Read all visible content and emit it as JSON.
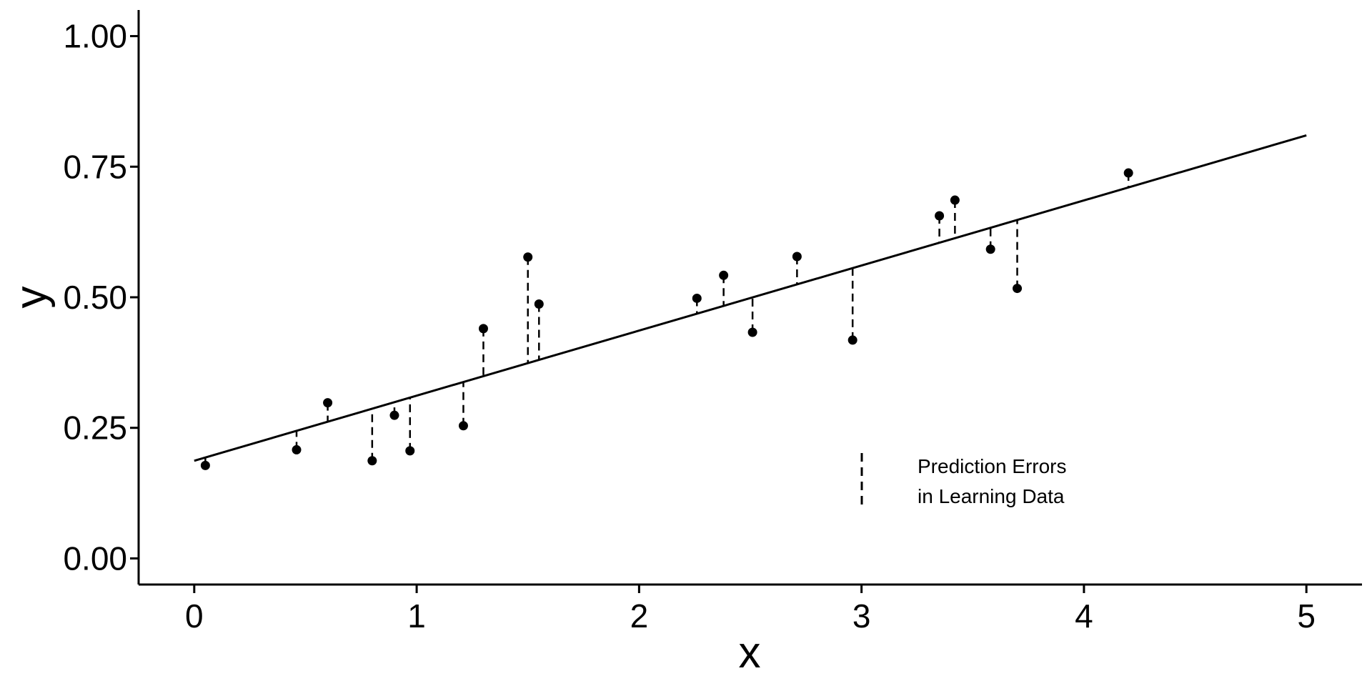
{
  "chart_data": {
    "type": "scatter",
    "xlabel": "x",
    "ylabel": "y",
    "xlim": [
      -0.25,
      5.25
    ],
    "ylim": [
      -0.05,
      1.05
    ],
    "x_ticks": [
      0,
      1,
      2,
      3,
      4,
      5
    ],
    "x_tick_labels": [
      "0",
      "1",
      "2",
      "3",
      "4",
      "5"
    ],
    "y_ticks": [
      0,
      0.25,
      0.5,
      0.75,
      1.0
    ],
    "y_tick_labels": [
      "0.00",
      "0.25",
      "0.50",
      "0.75",
      "1.00"
    ],
    "grid": false,
    "fit_line": {
      "x": [
        0,
        5
      ],
      "y": [
        0.187,
        0.81
      ]
    },
    "points": {
      "x": [
        0.05,
        0.46,
        0.6,
        0.8,
        0.9,
        0.97,
        1.21,
        1.3,
        1.5,
        1.55,
        2.26,
        2.38,
        2.51,
        2.71,
        2.96,
        3.35,
        3.42,
        3.58,
        3.7,
        4.2
      ],
      "y": [
        0.178,
        0.208,
        0.298,
        0.187,
        0.274,
        0.206,
        0.254,
        0.44,
        0.577,
        0.487,
        0.498,
        0.542,
        0.433,
        0.578,
        0.418,
        0.656,
        0.686,
        0.592,
        0.517,
        0.738
      ]
    },
    "legend": {
      "position": "bottom-right",
      "lines": [
        "Prediction Errors",
        "in Learning Data"
      ]
    },
    "colors": {
      "points": "#000000",
      "line": "#000000",
      "residuals": "#000000"
    }
  }
}
